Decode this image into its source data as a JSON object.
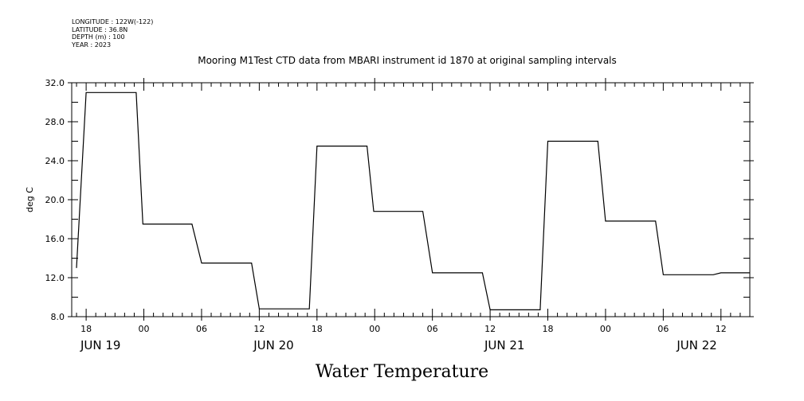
{
  "header": {
    "meta_lines": [
      "LONGITUDE : 122W(-122)",
      "LATITUDE : 36.8N",
      "DEPTH (m) : 100",
      "YEAR : 2023"
    ],
    "title": "Mooring M1Test CTD data from MBARI instrument id 1870 at original sampling intervals"
  },
  "footer": {
    "big_title": "Water Temperature"
  },
  "chart_data": {
    "type": "line",
    "title": "Mooring M1Test CTD data from MBARI instrument id 1870 at original sampling intervals",
    "xlabel": "",
    "ylabel": "deg C",
    "ylim": [
      8.0,
      32.0
    ],
    "y_ticks": [
      "8.0",
      "12.0",
      "16.0",
      "20.0",
      "24.0",
      "28.0",
      "32.0"
    ],
    "x_tick_labels": [
      {
        "h": 18,
        "label": "18"
      },
      {
        "h": 24,
        "label": "00"
      },
      {
        "h": 30,
        "label": "06"
      },
      {
        "h": 36,
        "label": "12"
      },
      {
        "h": 42,
        "label": "18"
      },
      {
        "h": 48,
        "label": "00"
      },
      {
        "h": 54,
        "label": "06"
      },
      {
        "h": 60,
        "label": "12"
      },
      {
        "h": 66,
        "label": "18"
      },
      {
        "h": 72,
        "label": "00"
      },
      {
        "h": 78,
        "label": "06"
      },
      {
        "h": 84,
        "label": "12"
      }
    ],
    "date_labels": [
      {
        "h": 19.5,
        "label": "JUN 19"
      },
      {
        "h": 37.5,
        "label": "JUN 20"
      },
      {
        "h": 61.5,
        "label": "JUN 21"
      },
      {
        "h": 81.5,
        "label": "JUN 22"
      }
    ],
    "xlim_hours_from_jun18": [
      16.5,
      87
    ],
    "grid": false,
    "series": [
      {
        "x": [
          17.0,
          18.0,
          23.2,
          23.9,
          29.0,
          30.0,
          35.2,
          36.0,
          41.2,
          42.0,
          47.2,
          47.9,
          53.0,
          54.0,
          59.2,
          60.0,
          65.2,
          66.0,
          71.2,
          72.0,
          77.2,
          78.0,
          83.2,
          84.0,
          87.0
        ],
        "y": [
          13.0,
          31.0,
          31.0,
          17.5,
          17.5,
          13.5,
          13.5,
          8.8,
          8.8,
          25.5,
          25.5,
          18.8,
          18.8,
          12.5,
          12.5,
          8.7,
          8.7,
          26.0,
          26.0,
          17.8,
          17.8,
          12.3,
          12.3,
          12.5,
          12.5
        ]
      }
    ]
  }
}
